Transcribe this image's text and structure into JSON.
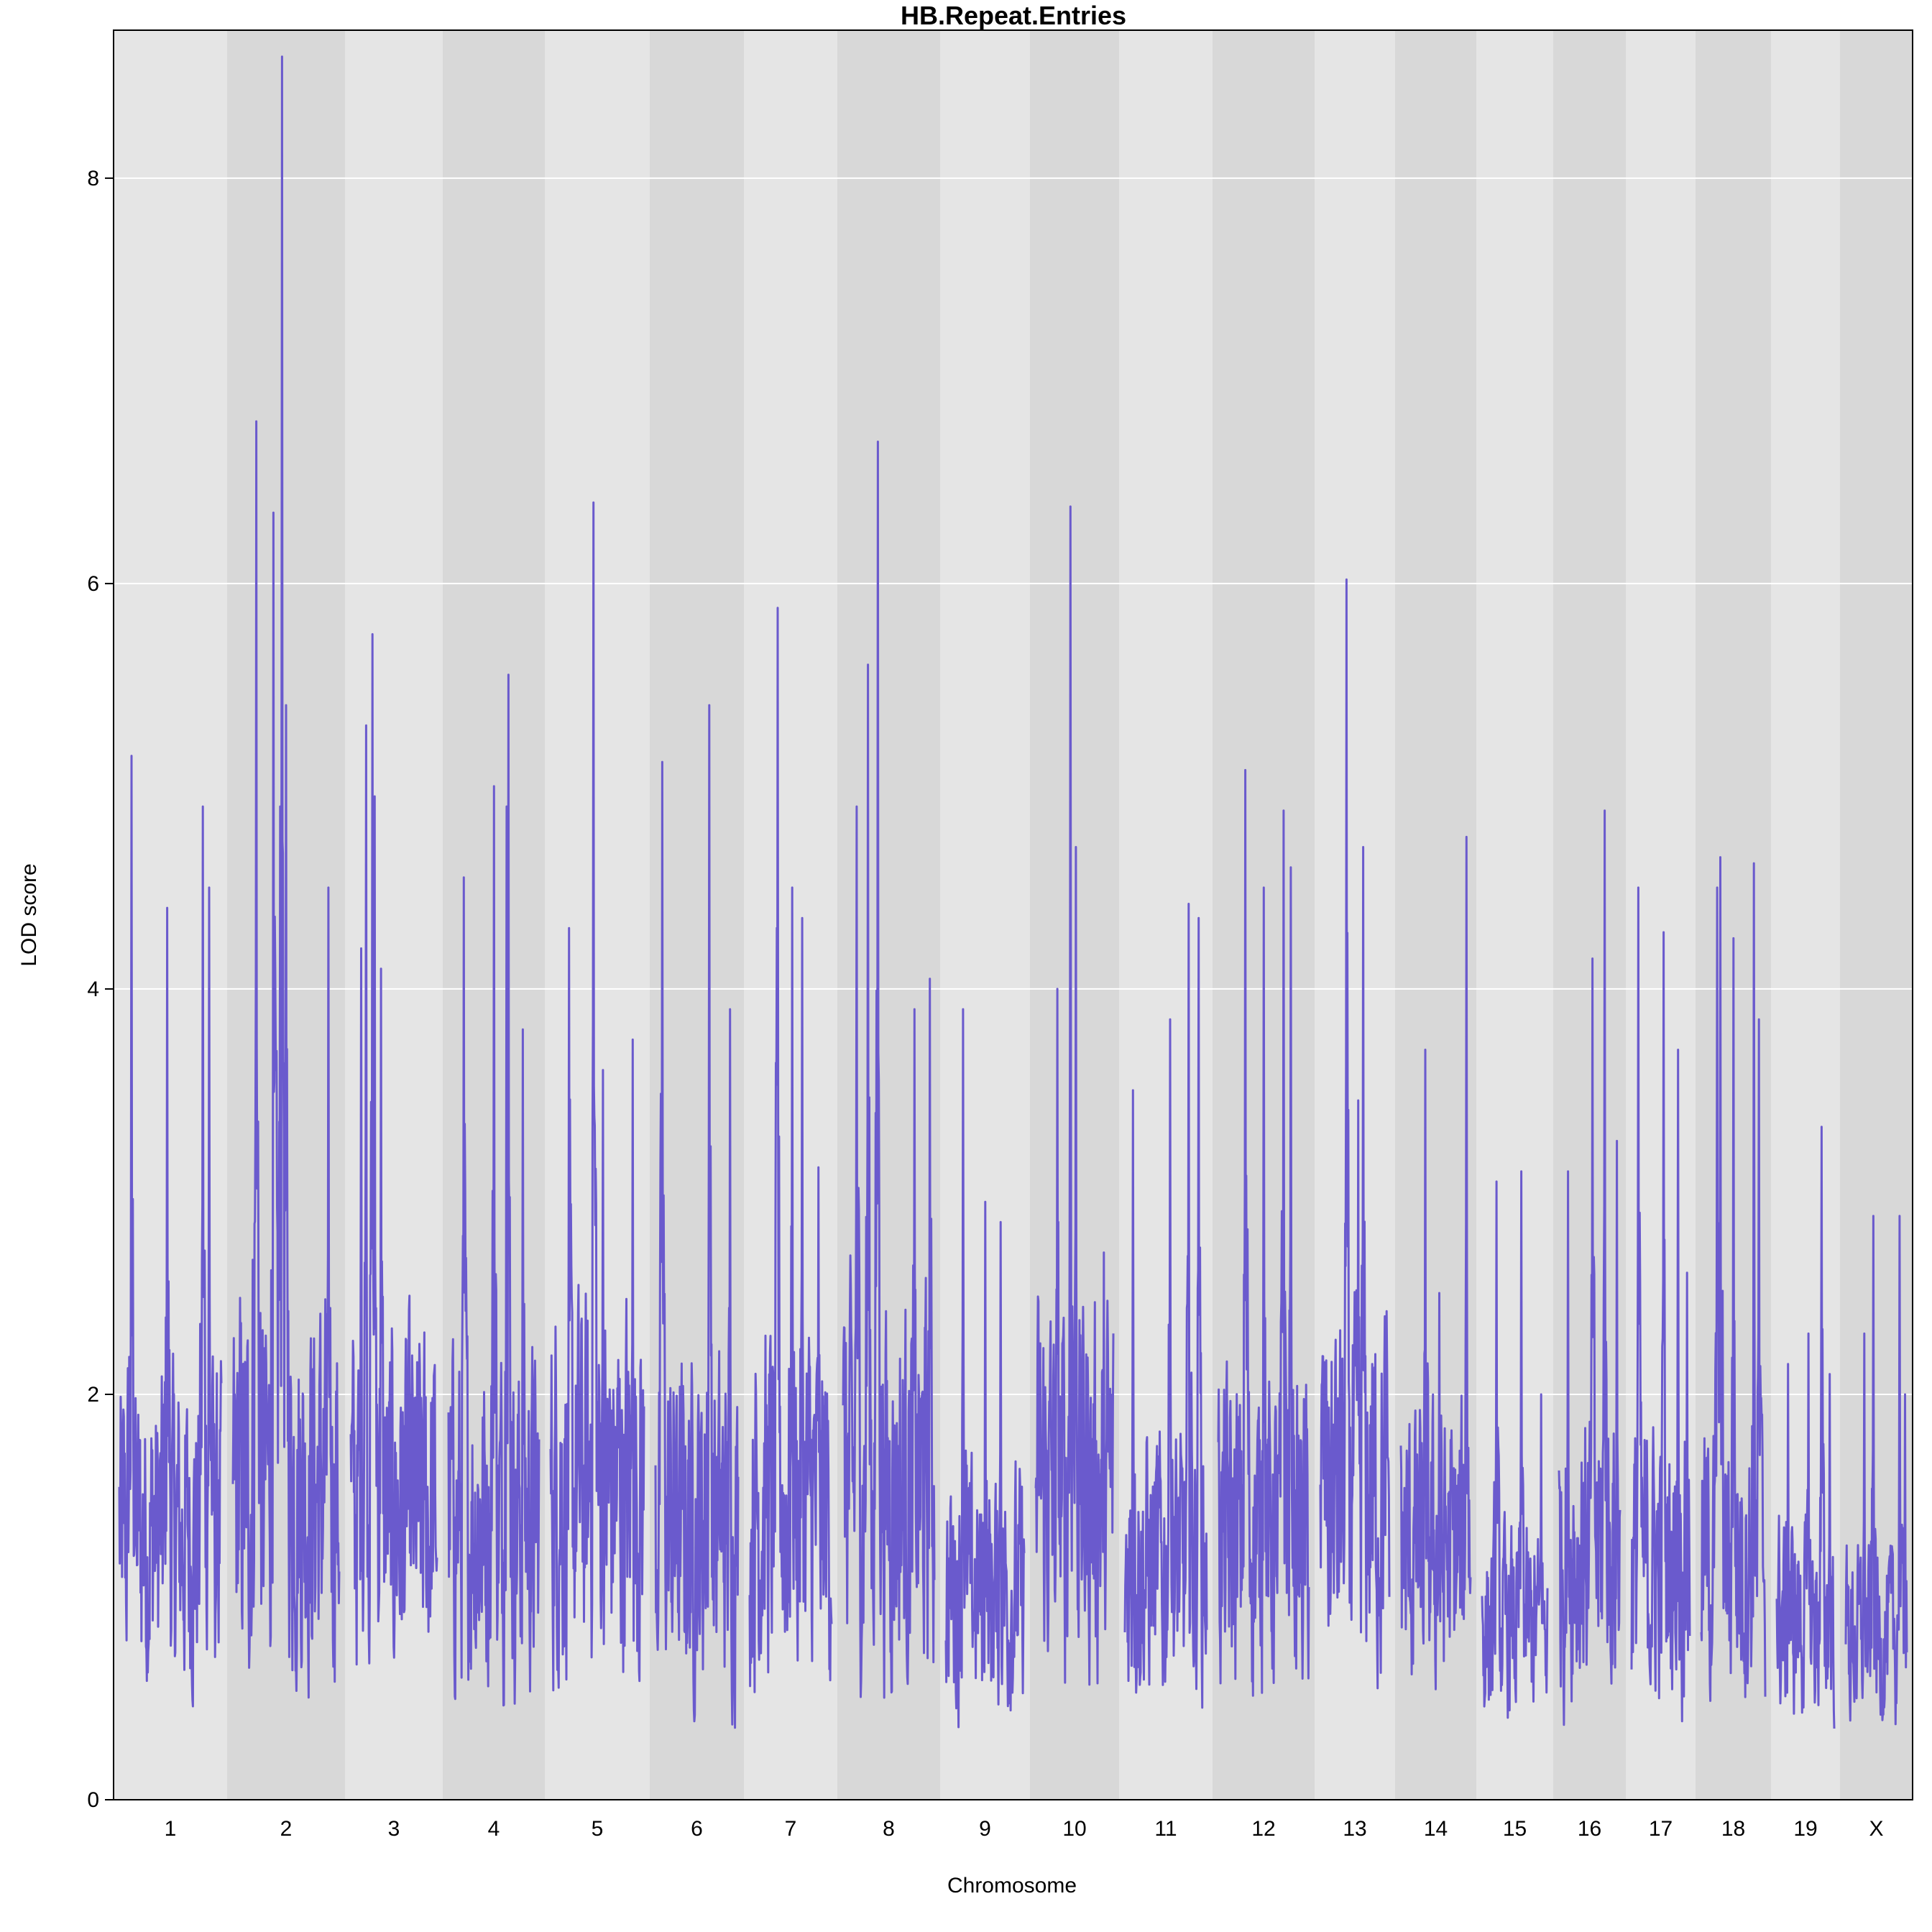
{
  "chart_data": {
    "type": "line",
    "title": "HB.Repeat.Entries",
    "xlabel": "Chromosome",
    "ylabel": "LOD score",
    "ylim": [
      0,
      8.73
    ],
    "yticks": [
      "0",
      "2",
      "4",
      "6",
      "8"
    ],
    "grid": true,
    "colors": {
      "line": "#6a5acd",
      "band_light": "#e5e5e5",
      "band_dark": "#d8d8d8",
      "grid": "#ffffff",
      "frame": "#000000"
    },
    "chromosomes": [
      {
        "name": "1",
        "peak": 5.15,
        "top": [
          [
            0.12,
            5.15
          ],
          [
            0.47,
            4.4
          ],
          [
            0.82,
            4.9
          ],
          [
            0.88,
            4.5
          ]
        ]
      },
      {
        "name": "2",
        "peak": 8.6,
        "top": [
          [
            0.22,
            6.8
          ],
          [
            0.38,
            6.35
          ],
          [
            0.46,
            8.6
          ],
          [
            0.5,
            5.4
          ],
          [
            0.9,
            4.5
          ]
        ]
      },
      {
        "name": "3",
        "peak": 5.75,
        "top": [
          [
            0.12,
            4.2
          ],
          [
            0.18,
            5.3
          ],
          [
            0.25,
            5.75
          ],
          [
            0.28,
            4.95
          ],
          [
            0.35,
            4.1
          ]
        ]
      },
      {
        "name": "4",
        "peak": 5.55,
        "top": [
          [
            0.17,
            4.55
          ],
          [
            0.5,
            5.0
          ],
          [
            0.64,
            4.9
          ],
          [
            0.66,
            5.55
          ],
          [
            0.82,
            3.8
          ]
        ]
      },
      {
        "name": "5",
        "peak": 6.4,
        "top": [
          [
            0.2,
            4.3
          ],
          [
            0.46,
            6.4
          ],
          [
            0.56,
            3.6
          ],
          [
            0.88,
            3.75
          ]
        ]
      },
      {
        "name": "6",
        "peak": 5.4,
        "top": [
          [
            0.08,
            5.12
          ],
          [
            0.65,
            5.4
          ],
          [
            0.9,
            3.9
          ]
        ]
      },
      {
        "name": "7",
        "peak": 5.88,
        "top": [
          [
            0.34,
            5.88
          ],
          [
            0.52,
            4.5
          ],
          [
            0.64,
            4.35
          ],
          [
            0.84,
            3.12
          ]
        ]
      },
      {
        "name": "8",
        "peak": 6.7,
        "top": [
          [
            0.15,
            4.9
          ],
          [
            0.27,
            5.6
          ],
          [
            0.38,
            6.7
          ],
          [
            0.78,
            3.9
          ],
          [
            0.95,
            4.05
          ]
        ]
      },
      {
        "name": "9",
        "peak": 3.9,
        "top": [
          [
            0.22,
            3.9
          ],
          [
            0.5,
            2.95
          ],
          [
            0.7,
            2.85
          ]
        ]
      },
      {
        "name": "10",
        "peak": 6.38,
        "top": [
          [
            0.28,
            4.0
          ],
          [
            0.45,
            6.38
          ],
          [
            0.52,
            4.7
          ],
          [
            0.88,
            2.7
          ]
        ]
      },
      {
        "name": "11",
        "peak": 4.42,
        "top": [
          [
            0.1,
            3.5
          ],
          [
            0.55,
            3.85
          ],
          [
            0.78,
            4.42
          ],
          [
            0.9,
            4.35
          ]
        ]
      },
      {
        "name": "12",
        "peak": 5.08,
        "top": [
          [
            0.3,
            5.08
          ],
          [
            0.5,
            4.5
          ],
          [
            0.72,
            4.88
          ],
          [
            0.8,
            4.6
          ]
        ]
      },
      {
        "name": "13",
        "peak": 6.02,
        "top": [
          [
            0.38,
            6.02
          ],
          [
            0.55,
            3.45
          ],
          [
            0.62,
            4.7
          ],
          [
            0.75,
            2.15
          ]
        ]
      },
      {
        "name": "14",
        "peak": 4.75,
        "top": [
          [
            0.35,
            3.7
          ],
          [
            0.55,
            2.5
          ],
          [
            0.94,
            4.75
          ]
        ]
      },
      {
        "name": "15",
        "peak": 3.12,
        "top": [
          [
            0.22,
            3.05
          ],
          [
            0.6,
            3.1
          ],
          [
            0.9,
            2.0
          ]
        ]
      },
      {
        "name": "16",
        "peak": 4.88,
        "top": [
          [
            0.15,
            3.1
          ],
          [
            0.55,
            4.15
          ],
          [
            0.75,
            4.88
          ],
          [
            0.95,
            3.25
          ]
        ]
      },
      {
        "name": "17",
        "peak": 4.5,
        "top": [
          [
            0.12,
            4.5
          ],
          [
            0.55,
            4.28
          ],
          [
            0.8,
            3.7
          ],
          [
            0.95,
            2.6
          ]
        ]
      },
      {
        "name": "18",
        "peak": 4.65,
        "top": [
          [
            0.25,
            4.5
          ],
          [
            0.3,
            4.65
          ],
          [
            0.5,
            4.25
          ],
          [
            0.82,
            4.62
          ],
          [
            0.9,
            3.85
          ]
        ]
      },
      {
        "name": "19",
        "peak": 3.32,
        "top": [
          [
            0.2,
            2.15
          ],
          [
            0.55,
            2.3
          ],
          [
            0.78,
            3.32
          ],
          [
            0.92,
            2.1
          ]
        ]
      },
      {
        "name": "X",
        "peak": 2.88,
        "top": [
          [
            0.3,
            2.3
          ],
          [
            0.45,
            2.88
          ],
          [
            0.88,
            2.88
          ],
          [
            0.97,
            2.0
          ]
        ]
      }
    ]
  }
}
